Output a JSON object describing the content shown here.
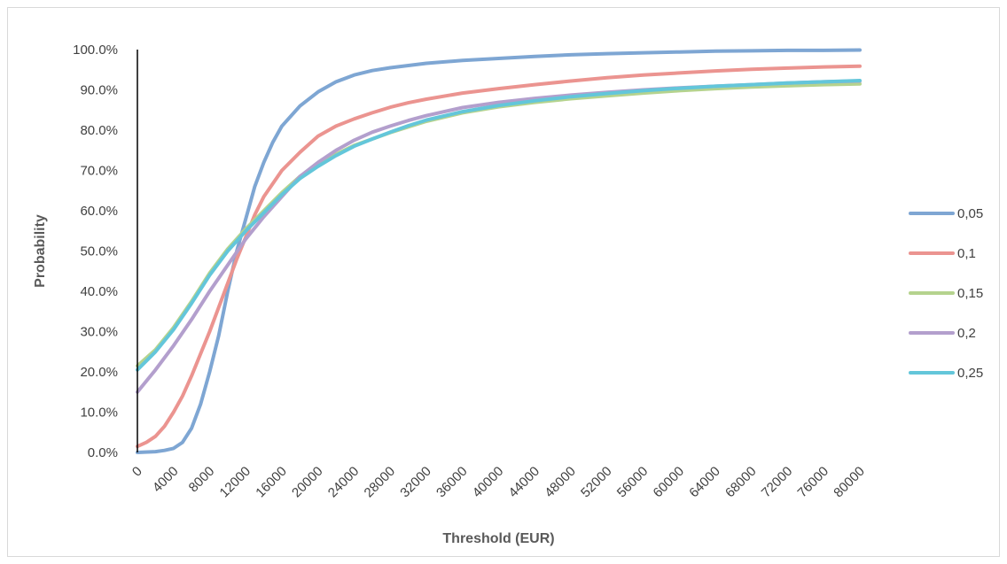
{
  "chart_data": {
    "type": "line",
    "title": "",
    "xlabel": "Threshold (EUR)",
    "ylabel": "Probability",
    "xlim": [
      0,
      80000
    ],
    "ylim": [
      0,
      1
    ],
    "grid": false,
    "legend_position": "right",
    "x_ticks": [
      0,
      4000,
      8000,
      12000,
      16000,
      20000,
      24000,
      28000,
      32000,
      36000,
      40000,
      44000,
      48000,
      52000,
      56000,
      60000,
      64000,
      68000,
      72000,
      76000,
      80000
    ],
    "x_tick_labels": [
      "0",
      "4000",
      "8000",
      "12000",
      "16000",
      "20000",
      "24000",
      "28000",
      "32000",
      "36000",
      "40000",
      "44000",
      "48000",
      "52000",
      "56000",
      "60000",
      "64000",
      "68000",
      "72000",
      "76000",
      "80000"
    ],
    "y_ticks": [
      0,
      0.1,
      0.2,
      0.3,
      0.4,
      0.5,
      0.6,
      0.7,
      0.8,
      0.9,
      1.0
    ],
    "y_tick_labels": [
      "0.0%",
      "10.0%",
      "20.0%",
      "30.0%",
      "40.0%",
      "50.0%",
      "60.0%",
      "70.0%",
      "80.0%",
      "90.0%",
      "100.0%"
    ],
    "series": [
      {
        "name": "0,05",
        "color": "#7ea6d3",
        "x": [
          0,
          2000,
          3000,
          4000,
          5000,
          6000,
          7000,
          8000,
          9000,
          10000,
          11000,
          12000,
          13000,
          14000,
          15000,
          16000,
          18000,
          20000,
          22000,
          24000,
          26000,
          28000,
          32000,
          36000,
          40000,
          44000,
          48000,
          52000,
          56000,
          60000,
          64000,
          68000,
          72000,
          76000,
          80000
        ],
        "y": [
          0.0,
          0.002,
          0.005,
          0.01,
          0.025,
          0.06,
          0.12,
          0.2,
          0.29,
          0.4,
          0.5,
          0.58,
          0.66,
          0.72,
          0.77,
          0.81,
          0.86,
          0.895,
          0.92,
          0.937,
          0.948,
          0.955,
          0.966,
          0.973,
          0.978,
          0.983,
          0.987,
          0.99,
          0.992,
          0.994,
          0.996,
          0.997,
          0.998,
          0.998,
          0.999
        ]
      },
      {
        "name": "0,1",
        "color": "#eb9490",
        "x": [
          0,
          1000,
          2000,
          3000,
          4000,
          5000,
          6000,
          7000,
          8000,
          9000,
          10000,
          11000,
          12000,
          13000,
          14000,
          16000,
          18000,
          20000,
          22000,
          24000,
          26000,
          28000,
          30000,
          32000,
          36000,
          40000,
          44000,
          48000,
          52000,
          56000,
          60000,
          64000,
          68000,
          72000,
          76000,
          80000
        ],
        "y": [
          0.015,
          0.025,
          0.04,
          0.065,
          0.1,
          0.14,
          0.19,
          0.245,
          0.3,
          0.36,
          0.42,
          0.48,
          0.535,
          0.59,
          0.635,
          0.7,
          0.745,
          0.785,
          0.81,
          0.828,
          0.843,
          0.857,
          0.868,
          0.877,
          0.892,
          0.903,
          0.913,
          0.922,
          0.93,
          0.937,
          0.942,
          0.947,
          0.951,
          0.954,
          0.957,
          0.959
        ]
      },
      {
        "name": "0,15",
        "color": "#b5d38e",
        "x": [
          0,
          2000,
          4000,
          6000,
          8000,
          10000,
          12000,
          14000,
          16000,
          18000,
          20000,
          22000,
          24000,
          26000,
          28000,
          30000,
          32000,
          36000,
          40000,
          44000,
          48000,
          52000,
          56000,
          60000,
          64000,
          68000,
          72000,
          76000,
          80000
        ],
        "y": [
          0.215,
          0.255,
          0.31,
          0.375,
          0.445,
          0.505,
          0.555,
          0.6,
          0.645,
          0.685,
          0.715,
          0.74,
          0.762,
          0.778,
          0.794,
          0.808,
          0.822,
          0.843,
          0.858,
          0.869,
          0.878,
          0.885,
          0.892,
          0.898,
          0.903,
          0.907,
          0.91,
          0.913,
          0.915
        ]
      },
      {
        "name": "0,2",
        "color": "#b39fcd",
        "x": [
          0,
          2000,
          4000,
          6000,
          8000,
          10000,
          12000,
          14000,
          16000,
          18000,
          20000,
          22000,
          24000,
          26000,
          28000,
          30000,
          32000,
          36000,
          40000,
          44000,
          48000,
          52000,
          56000,
          60000,
          64000,
          68000,
          72000,
          76000,
          80000
        ],
        "y": [
          0.15,
          0.205,
          0.265,
          0.33,
          0.4,
          0.465,
          0.53,
          0.585,
          0.635,
          0.685,
          0.72,
          0.75,
          0.775,
          0.795,
          0.81,
          0.824,
          0.836,
          0.856,
          0.869,
          0.879,
          0.887,
          0.894,
          0.9,
          0.905,
          0.909,
          0.913,
          0.917,
          0.92,
          0.922
        ]
      },
      {
        "name": "0,25",
        "color": "#63c6da",
        "x": [
          0,
          2000,
          4000,
          6000,
          8000,
          10000,
          12000,
          14000,
          16000,
          18000,
          20000,
          22000,
          24000,
          26000,
          28000,
          30000,
          32000,
          36000,
          40000,
          44000,
          48000,
          52000,
          56000,
          60000,
          64000,
          68000,
          72000,
          76000,
          80000
        ],
        "y": [
          0.205,
          0.25,
          0.305,
          0.37,
          0.44,
          0.5,
          0.55,
          0.595,
          0.64,
          0.68,
          0.71,
          0.737,
          0.76,
          0.778,
          0.795,
          0.811,
          0.825,
          0.846,
          0.861,
          0.873,
          0.883,
          0.891,
          0.898,
          0.904,
          0.909,
          0.913,
          0.917,
          0.92,
          0.923
        ]
      }
    ]
  }
}
